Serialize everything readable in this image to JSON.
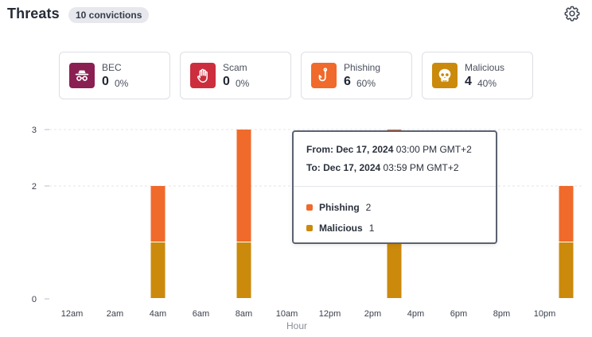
{
  "header": {
    "title": "Threats",
    "badge": "10 convictions",
    "settings_icon": "gear-icon"
  },
  "cards": [
    {
      "id": "bec",
      "label": "BEC",
      "count": "0",
      "percent": "0%",
      "icon": "spy-icon",
      "color": "#8a1f52"
    },
    {
      "id": "scam",
      "label": "Scam",
      "count": "0",
      "percent": "0%",
      "icon": "stop-hand-icon",
      "color": "#cc2e3d"
    },
    {
      "id": "phishing",
      "label": "Phishing",
      "count": "6",
      "percent": "60%",
      "icon": "fishhook-icon",
      "color": "#ef6a2b"
    },
    {
      "id": "malicious",
      "label": "Malicious",
      "count": "4",
      "percent": "40%",
      "icon": "skull-icon",
      "color": "#cb8a0c"
    }
  ],
  "tooltip": {
    "from_label": "From:",
    "from_date": "Dec 17, 2024",
    "from_time": "03:00 PM GMT+2",
    "to_label": "To:",
    "to_date": "Dec 17, 2024",
    "to_time": "03:59 PM GMT+2",
    "items": [
      {
        "name": "Phishing",
        "value": "2",
        "color": "#ef6a2b"
      },
      {
        "name": "Malicious",
        "value": "1",
        "color": "#cb8a0c"
      }
    ]
  },
  "chart_data": {
    "type": "bar",
    "stacked": true,
    "xlabel": "Hour",
    "ylabel": "",
    "ylim": [
      0,
      3
    ],
    "y_ticks": [
      "0",
      "2",
      "3"
    ],
    "x_tick_labels": [
      "12am",
      "2am",
      "4am",
      "6am",
      "8am",
      "10am",
      "12pm",
      "2pm",
      "4pm",
      "6pm",
      "8pm",
      "10pm"
    ],
    "grid": true,
    "categories": [
      "12am",
      "1am",
      "2am",
      "3am",
      "4am",
      "5am",
      "6am",
      "7am",
      "8am",
      "9am",
      "10am",
      "11am",
      "12pm",
      "1pm",
      "2pm",
      "3pm",
      "4pm",
      "5pm",
      "6pm",
      "7pm",
      "8pm",
      "9pm",
      "10pm",
      "11pm"
    ],
    "series": [
      {
        "name": "Malicious",
        "color": "#cb8a0c",
        "values": [
          0,
          0,
          0,
          0,
          1,
          0,
          0,
          0,
          1,
          0,
          0,
          0,
          0,
          0,
          0,
          1,
          0,
          0,
          0,
          0,
          0,
          0,
          0,
          1
        ]
      },
      {
        "name": "Phishing",
        "color": "#ef6a2b",
        "values": [
          0,
          0,
          0,
          0,
          1,
          0,
          0,
          0,
          2,
          0,
          0,
          0,
          0,
          0,
          0,
          2,
          0,
          0,
          0,
          0,
          0,
          0,
          0,
          1
        ]
      }
    ]
  }
}
